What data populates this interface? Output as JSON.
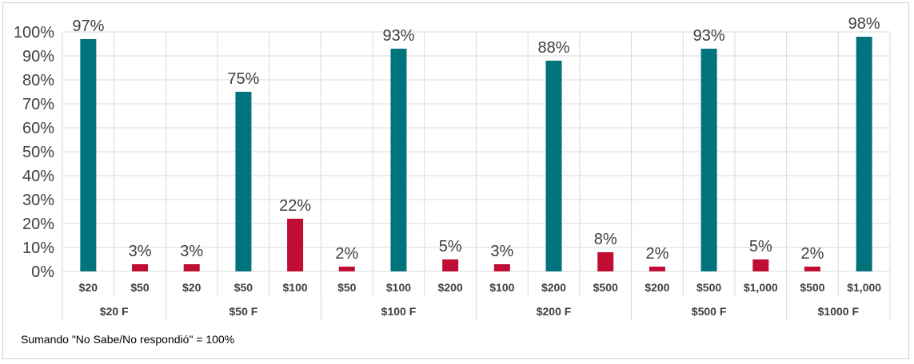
{
  "chart_data": {
    "type": "bar",
    "ylim": [
      0,
      100
    ],
    "y_ticks": [
      "0%",
      "10%",
      "20%",
      "30%",
      "40%",
      "50%",
      "60%",
      "70%",
      "80%",
      "90%",
      "100%"
    ],
    "grid": true,
    "colors": {
      "teal": "#00737C",
      "red": "#C00D33"
    },
    "groups": [
      {
        "label": "$20 F",
        "bars": [
          {
            "category": "$20",
            "value": 97,
            "label": "97%",
            "color": "teal"
          },
          {
            "category": "$50",
            "value": 3,
            "label": "3%",
            "color": "red"
          }
        ]
      },
      {
        "label": "$50 F",
        "bars": [
          {
            "category": "$20",
            "value": 3,
            "label": "3%",
            "color": "red"
          },
          {
            "category": "$50",
            "value": 75,
            "label": "75%",
            "color": "teal"
          },
          {
            "category": "$100",
            "value": 22,
            "label": "22%",
            "color": "red"
          }
        ]
      },
      {
        "label": "$100 F",
        "bars": [
          {
            "category": "$50",
            "value": 2,
            "label": "2%",
            "color": "red"
          },
          {
            "category": "$100",
            "value": 93,
            "label": "93%",
            "color": "teal"
          },
          {
            "category": "$200",
            "value": 5,
            "label": "5%",
            "color": "red"
          }
        ]
      },
      {
        "label": "$200 F",
        "bars": [
          {
            "category": "$100",
            "value": 3,
            "label": "3%",
            "color": "red"
          },
          {
            "category": "$200",
            "value": 88,
            "label": "88%",
            "color": "teal"
          },
          {
            "category": "$500",
            "value": 8,
            "label": "8%",
            "color": "red"
          }
        ]
      },
      {
        "label": "$500 F",
        "bars": [
          {
            "category": "$200",
            "value": 2,
            "label": "2%",
            "color": "red"
          },
          {
            "category": "$500",
            "value": 93,
            "label": "93%",
            "color": "teal"
          },
          {
            "category": "$1,000",
            "value": 5,
            "label": "5%",
            "color": "red"
          }
        ]
      },
      {
        "label": "$1000 F",
        "bars": [
          {
            "category": "$500",
            "value": 2,
            "label": "2%",
            "color": "red"
          },
          {
            "category": "$1,000",
            "value": 98,
            "label": "98%",
            "color": "teal"
          }
        ]
      }
    ]
  },
  "footnote": "Sumando \"No Sabe/No respondió\" = 100%"
}
